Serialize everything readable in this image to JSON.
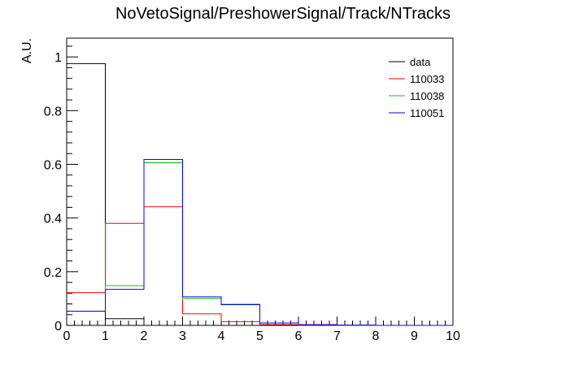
{
  "chart_data": {
    "type": "histogram-step",
    "title": "NoVetoSignal/PreshowerSignal/Track/NTracks",
    "xlabel": "",
    "ylabel": "A.U.",
    "xlim": [
      0,
      10
    ],
    "ylim": [
      0,
      1.07
    ],
    "x_ticks": [
      "0",
      "1",
      "2",
      "3",
      "4",
      "5",
      "6",
      "7",
      "8",
      "9",
      "10"
    ],
    "y_ticks": [
      "0",
      "0.2",
      "0.4",
      "0.6",
      "0.8",
      "1"
    ],
    "bin_edges": [
      0,
      1,
      2,
      3,
      4,
      5,
      6,
      7,
      8,
      9,
      10
    ],
    "legend_position": "top-right",
    "series": [
      {
        "name": "data",
        "color": "#000000",
        "values": [
          0.975,
          0.025,
          0.0,
          0.0,
          0.0,
          0.0,
          0.0,
          0.0,
          0.0,
          0.0
        ]
      },
      {
        "name": "110033",
        "color": "#ff0000",
        "values": [
          0.122,
          0.38,
          0.442,
          0.043,
          0.014,
          0.003,
          0.001,
          0.0,
          0.0,
          0.0
        ]
      },
      {
        "name": "110038",
        "color": "#00cc00",
        "values": [
          0.053,
          0.148,
          0.606,
          0.1,
          0.079,
          0.009,
          0.003,
          0.001,
          0.0,
          0.0
        ]
      },
      {
        "name": "110051",
        "color": "#0000ff",
        "values": [
          0.053,
          0.134,
          0.618,
          0.106,
          0.077,
          0.009,
          0.003,
          0.001,
          0.0,
          0.0
        ]
      }
    ]
  }
}
